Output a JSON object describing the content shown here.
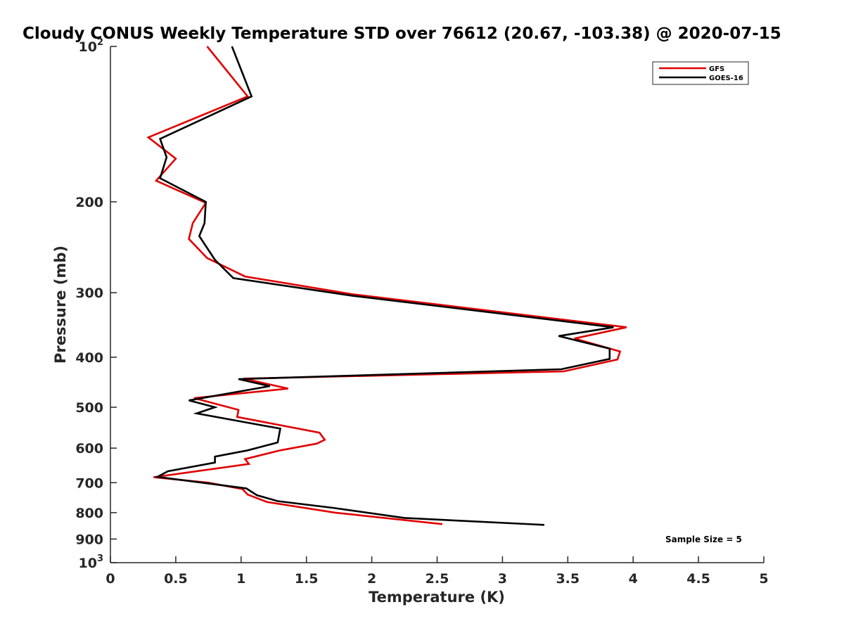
{
  "chart_data": {
    "type": "line",
    "title": "Cloudy CONUS Weekly Temperature STD over 76612 (20.67, -103.38) @ 2020-07-15",
    "xlabel": "Temperature (K)",
    "ylabel": "Pressure (mb)",
    "xlim": [
      0,
      5
    ],
    "ylim": [
      100,
      1000
    ],
    "yscale": "log",
    "y_reversed": true,
    "x_ticks": [
      0,
      0.5,
      1,
      1.5,
      2,
      2.5,
      3,
      3.5,
      4,
      4.5,
      5
    ],
    "x_tick_labels": [
      "0",
      "0.5",
      "1",
      "1.5",
      "2",
      "2.5",
      "3",
      "3.5",
      "4",
      "4.5",
      "5"
    ],
    "y_ticks": [
      {
        "value": 100,
        "base": "10",
        "exp": "2"
      },
      {
        "value": 200,
        "label": "200"
      },
      {
        "value": 300,
        "label": "300"
      },
      {
        "value": 400,
        "label": "400"
      },
      {
        "value": 500,
        "label": "500"
      },
      {
        "value": 600,
        "label": "600"
      },
      {
        "value": 700,
        "label": "700"
      },
      {
        "value": 800,
        "label": "800"
      },
      {
        "value": 900,
        "label": "900"
      },
      {
        "value": 1000,
        "base": "10",
        "exp": "3"
      }
    ],
    "legend_position": "top-right",
    "annotation": "Sample Size = 5",
    "series": [
      {
        "name": "GFS",
        "color": "#e00000",
        "points": [
          [
            0.74,
            100
          ],
          [
            1.05,
            125
          ],
          [
            0.29,
            150
          ],
          [
            0.5,
            165
          ],
          [
            0.35,
            182
          ],
          [
            0.73,
            201
          ],
          [
            0.63,
            220
          ],
          [
            0.6,
            236
          ],
          [
            0.74,
            257
          ],
          [
            1.03,
            279
          ],
          [
            1.85,
            302
          ],
          [
            3.95,
            350
          ],
          [
            3.55,
            368
          ],
          [
            3.9,
            390
          ],
          [
            3.88,
            404
          ],
          [
            3.47,
            426
          ],
          [
            1.02,
            440
          ],
          [
            1.36,
            460
          ],
          [
            0.64,
            480
          ],
          [
            0.98,
            506
          ],
          [
            0.97,
            522
          ],
          [
            1.6,
            560
          ],
          [
            1.64,
            578
          ],
          [
            1.58,
            588
          ],
          [
            1.3,
            606
          ],
          [
            1.03,
            630
          ],
          [
            1.06,
            644
          ],
          [
            0.33,
            683
          ],
          [
            0.75,
            700
          ],
          [
            1.01,
            720
          ],
          [
            1.05,
            738
          ],
          [
            1.2,
            763
          ],
          [
            1.72,
            800
          ],
          [
            2.54,
            842
          ]
        ]
      },
      {
        "name": "GOES-16",
        "color": "#000000",
        "points": [
          [
            0.93,
            100
          ],
          [
            1.08,
            125
          ],
          [
            0.38,
            151
          ],
          [
            0.43,
            164
          ],
          [
            0.38,
            180
          ],
          [
            0.73,
            200
          ],
          [
            0.72,
            220
          ],
          [
            0.68,
            233
          ],
          [
            0.8,
            259
          ],
          [
            0.94,
            281
          ],
          [
            1.85,
            304
          ],
          [
            3.85,
            350
          ],
          [
            3.43,
            364
          ],
          [
            3.82,
            385
          ],
          [
            3.82,
            403
          ],
          [
            3.45,
            422
          ],
          [
            0.98,
            441
          ],
          [
            1.22,
            455
          ],
          [
            0.6,
            485
          ],
          [
            0.8,
            500
          ],
          [
            0.66,
            514
          ],
          [
            1.3,
            550
          ],
          [
            1.28,
            585
          ],
          [
            1.05,
            606
          ],
          [
            0.8,
            623
          ],
          [
            0.8,
            640
          ],
          [
            0.44,
            665
          ],
          [
            0.36,
            682
          ],
          [
            1.04,
            718
          ],
          [
            1.12,
            740
          ],
          [
            1.28,
            760
          ],
          [
            1.7,
            783
          ],
          [
            2.25,
            819
          ],
          [
            3.32,
            845
          ]
        ]
      }
    ]
  }
}
